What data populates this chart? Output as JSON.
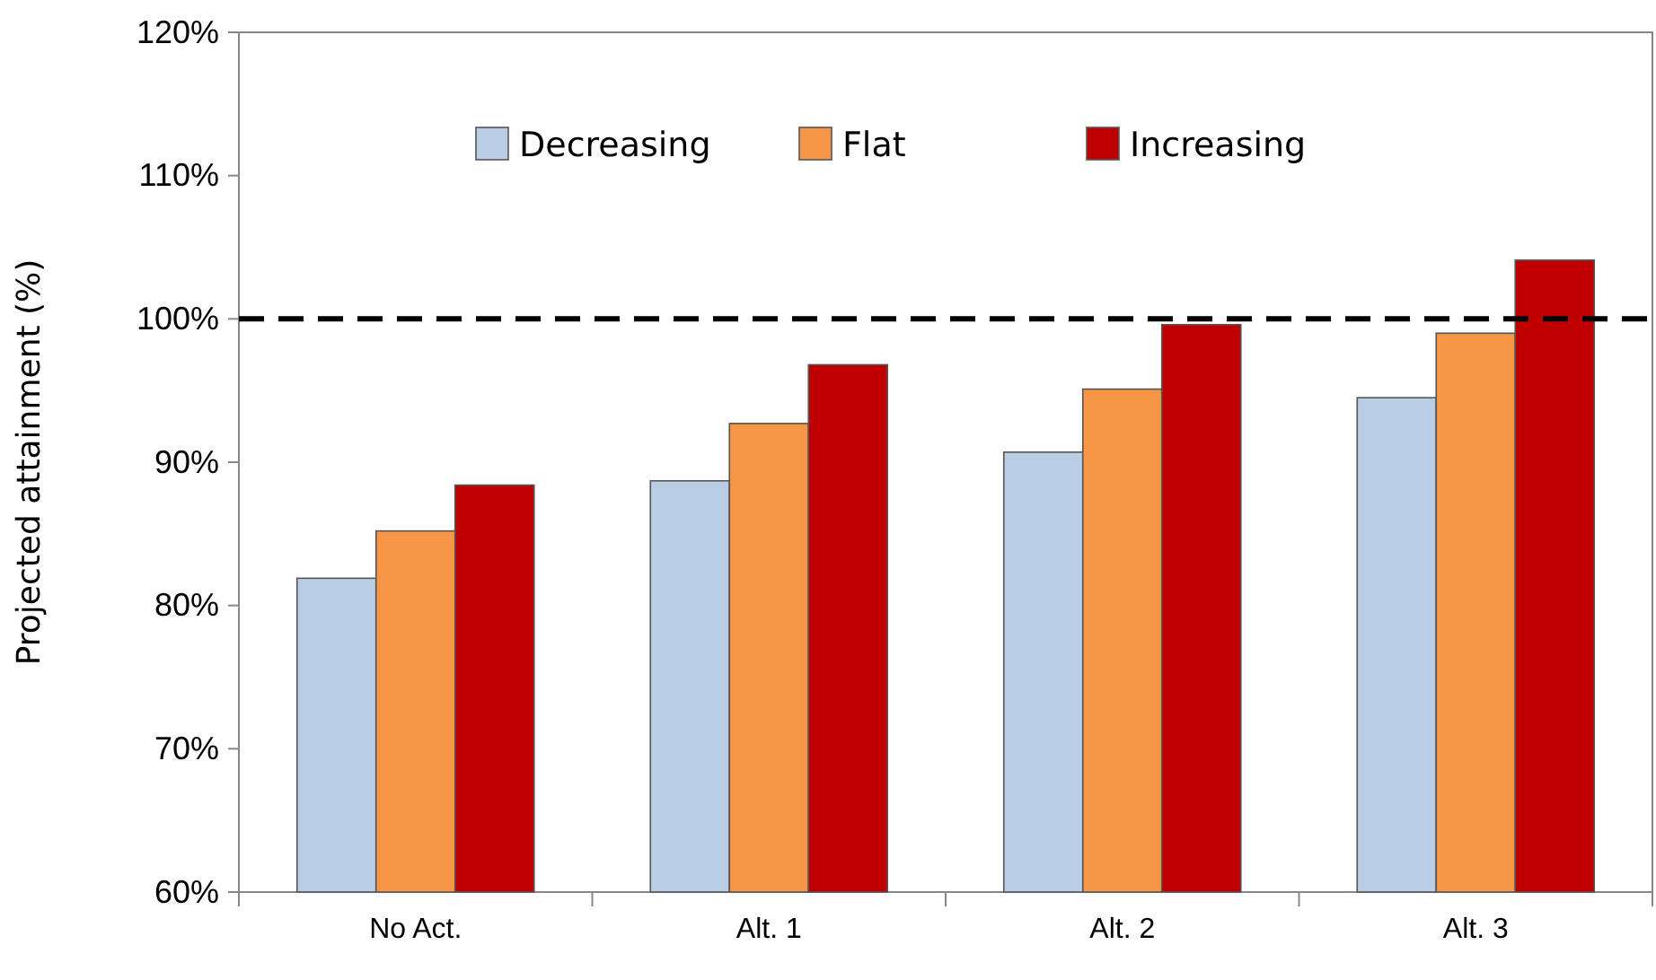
{
  "chart_data": {
    "type": "bar",
    "ylabel": "Projected attainment (%)",
    "categories": [
      "No Act.",
      "Alt. 1",
      "Alt. 2",
      "Alt. 3"
    ],
    "series": [
      {
        "name": "Decreasing",
        "color": "#b9cde5",
        "values": [
          81.9,
          88.7,
          90.7,
          94.5
        ]
      },
      {
        "name": "Flat",
        "color": "#f79646",
        "values": [
          85.2,
          92.7,
          95.1,
          99.0
        ]
      },
      {
        "name": "Increasing",
        "color": "#c00000",
        "values": [
          88.4,
          96.8,
          99.6,
          104.1
        ]
      }
    ],
    "ylim": [
      60,
      120
    ],
    "yticks": [
      {
        "value": 60,
        "label": "60%"
      },
      {
        "value": 70,
        "label": "70%"
      },
      {
        "value": 80,
        "label": "80%"
      },
      {
        "value": 90,
        "label": "90%"
      },
      {
        "value": 100,
        "label": "100%"
      },
      {
        "value": 110,
        "label": "110%"
      },
      {
        "value": 120,
        "label": "120%"
      }
    ],
    "ref_lines": [
      {
        "axis": "y",
        "value": 100,
        "color": "#000000",
        "line_style": "dashed"
      }
    ],
    "legend": "top",
    "grid": false
  }
}
